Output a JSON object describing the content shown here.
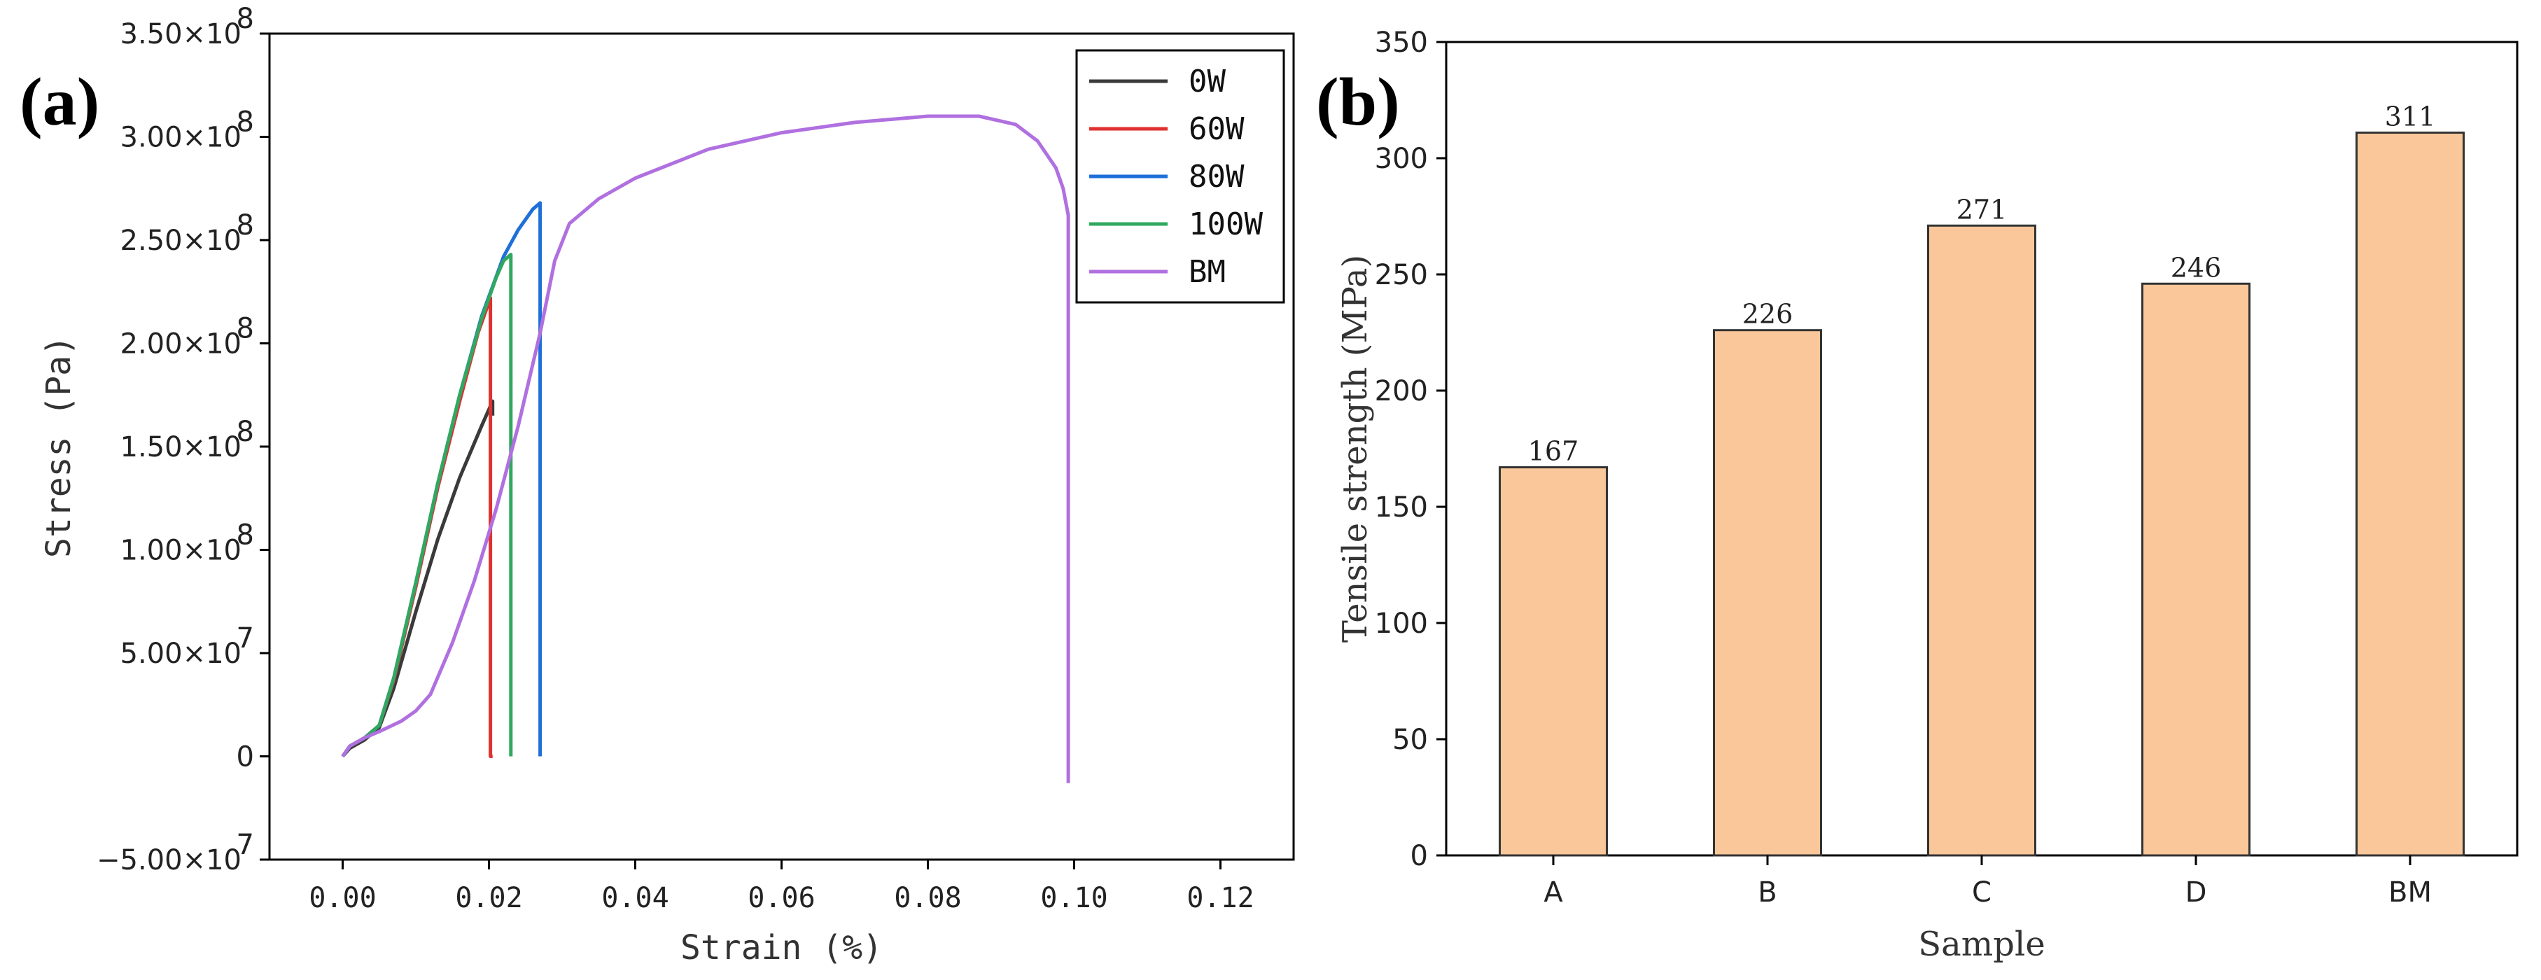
{
  "panels": {
    "a_label": "(a)",
    "b_label": "(b)"
  },
  "chart_data": [
    {
      "type": "line",
      "xlabel": "Strain (%)",
      "ylabel": "Stress (Pa)",
      "xlim": [
        -0.01,
        0.13
      ],
      "ylim": [
        -50000000,
        350000000
      ],
      "x_ticks": [
        0.0,
        0.02,
        0.04,
        0.06,
        0.08,
        0.1,
        0.12
      ],
      "x_tick_labels": [
        "0.00",
        "0.02",
        "0.04",
        "0.06",
        "0.08",
        "0.10",
        "0.12"
      ],
      "y_ticks": [
        -50000000,
        0,
        50000000,
        100000000,
        150000000,
        200000000,
        250000000,
        300000000,
        350000000
      ],
      "y_tick_labels": [
        {
          "m": "−5.00×10",
          "e": "7"
        },
        {
          "m": "0",
          "e": ""
        },
        {
          "m": "5.00×10",
          "e": "7"
        },
        {
          "m": "1.00×10",
          "e": "8"
        },
        {
          "m": "1.50×10",
          "e": "8"
        },
        {
          "m": "2.00×10",
          "e": "8"
        },
        {
          "m": "2.50×10",
          "e": "8"
        },
        {
          "m": "3.00×10",
          "e": "8"
        },
        {
          "m": "3.50×10",
          "e": "8"
        }
      ],
      "grid": false,
      "legend_position": "top-right",
      "series": [
        {
          "name": "0W",
          "color": "#3a3a3a",
          "x": [
            0.0,
            0.001,
            0.003,
            0.005,
            0.007,
            0.01,
            0.013,
            0.016,
            0.019,
            0.0205,
            0.0205
          ],
          "y": [
            0,
            4000000,
            8000000,
            14000000,
            33000000,
            70000000,
            105000000,
            135000000,
            160000000,
            172000000,
            165000000
          ]
        },
        {
          "name": "60W",
          "color": "#e03030",
          "x": [
            0.0,
            0.001,
            0.003,
            0.005,
            0.007,
            0.01,
            0.013,
            0.016,
            0.0185,
            0.0202,
            0.0202,
            0.0205
          ],
          "y": [
            0,
            5000000,
            9000000,
            15000000,
            37000000,
            82000000,
            130000000,
            172000000,
            205000000,
            222000000,
            0,
            0
          ]
        },
        {
          "name": "80W",
          "color": "#1e6fd9",
          "x": [
            0.0,
            0.001,
            0.003,
            0.005,
            0.007,
            0.01,
            0.013,
            0.016,
            0.019,
            0.022,
            0.024,
            0.026,
            0.027,
            0.027
          ],
          "y": [
            0,
            5000000,
            9000000,
            15000000,
            38000000,
            84000000,
            132000000,
            175000000,
            213000000,
            242000000,
            255000000,
            265000000,
            268000000,
            0
          ]
        },
        {
          "name": "100W",
          "color": "#30a860",
          "x": [
            0.0,
            0.001,
            0.003,
            0.005,
            0.007,
            0.01,
            0.013,
            0.016,
            0.019,
            0.021,
            0.022,
            0.023,
            0.023
          ],
          "y": [
            0,
            5000000,
            9000000,
            15000000,
            38000000,
            84000000,
            132000000,
            175000000,
            212000000,
            232000000,
            240000000,
            243000000,
            0
          ]
        },
        {
          "name": "BM",
          "color": "#b070e0",
          "x": [
            0.0,
            0.001,
            0.003,
            0.005,
            0.008,
            0.01,
            0.012,
            0.015,
            0.018,
            0.021,
            0.024,
            0.027,
            0.029,
            0.031,
            0.035,
            0.04,
            0.05,
            0.06,
            0.07,
            0.08,
            0.087,
            0.092,
            0.095,
            0.0975,
            0.0985,
            0.0992,
            0.0992
          ],
          "y": [
            0,
            5000000,
            9000000,
            12000000,
            17000000,
            22000000,
            30000000,
            55000000,
            85000000,
            120000000,
            160000000,
            205000000,
            240000000,
            258000000,
            270000000,
            280000000,
            294000000,
            302000000,
            307000000,
            310000000,
            310000000,
            306000000,
            298000000,
            285000000,
            275000000,
            262000000,
            -13000000
          ]
        }
      ]
    },
    {
      "type": "bar",
      "xlabel": "Sample",
      "ylabel": "Tensile strength (MPa)",
      "categories": [
        "A",
        "B",
        "C",
        "D",
        "BM"
      ],
      "values": [
        167,
        226,
        271,
        246,
        311
      ],
      "value_labels": [
        "167",
        "226",
        "271",
        "246",
        "311"
      ],
      "ylim": [
        0,
        350
      ],
      "y_ticks": [
        0,
        50,
        100,
        150,
        200,
        250,
        300,
        350
      ],
      "y_tick_labels": [
        "0",
        "50",
        "100",
        "150",
        "200",
        "250",
        "300",
        "350"
      ],
      "bar_color": "#f9c79a",
      "bar_edge": "#333333",
      "grid": false
    }
  ]
}
